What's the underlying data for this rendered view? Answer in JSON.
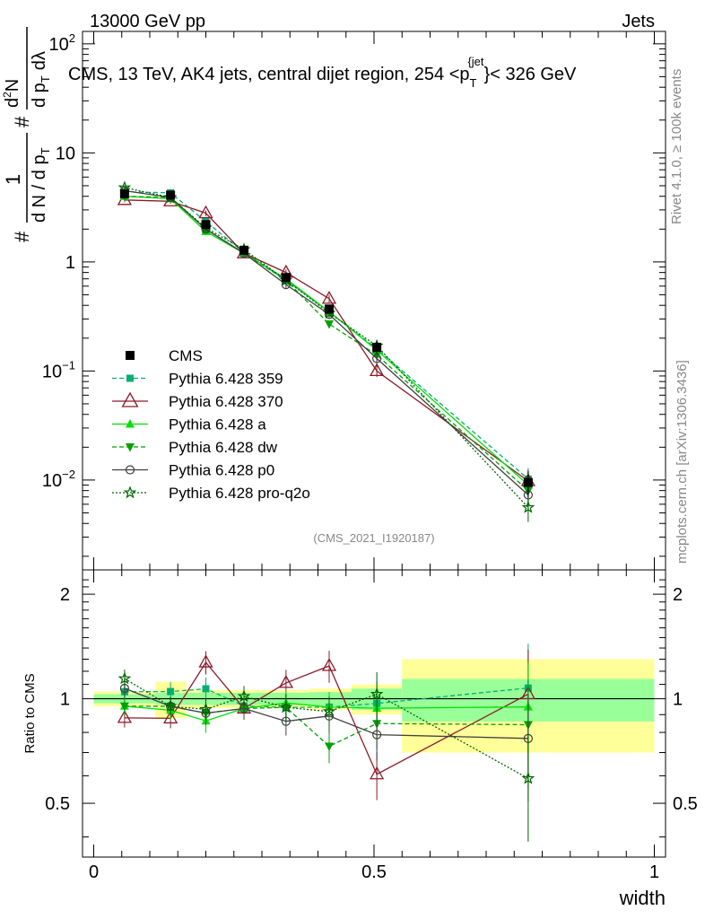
{
  "header": {
    "left": "13000 GeV pp",
    "right": "Jets"
  },
  "side": {
    "rivet": "Rivet 4.1.0, ≥ 100k events",
    "mcplots": "mcplots.cern.ch [arXiv:1306.3436]"
  },
  "ylabel_parts": {
    "hash1": "#",
    "frac_num": "1",
    "frac_den_a": "d N / d p",
    "frac_den_sub": "T",
    "hash2": "#",
    "d2n": "d",
    "d2n_sup": "2",
    "d2n_n": "N",
    "dp": "d p",
    "dp_sub": "T",
    "dlambda": "dλ"
  },
  "chart_data": {
    "type": "line",
    "title": "CMS, 13 TeV, AK4 jets, central dijet region, 254 <p",
    "title_sub": "T",
    "title_sup": "{jet",
    "title_end": "}< 326 GeV",
    "reference": "(CMS_2021_I1920187)",
    "xlabel": "width",
    "xlim": [
      -0.02,
      1.02
    ],
    "ylim": [
      0.0015,
      130
    ],
    "yscale": "log",
    "x_ticks": [
      "0",
      "0.5",
      "1"
    ],
    "y_ticks": [
      {
        "base": "10",
        "exp": "2",
        "v": 100
      },
      {
        "base": "10",
        "exp": "",
        "v": 10
      },
      {
        "base": "1",
        "exp": "",
        "v": 1
      },
      {
        "base": "10",
        "exp": "−1",
        "v": 0.1
      },
      {
        "base": "10",
        "exp": "−2",
        "v": 0.01
      }
    ],
    "x": [
      0.055,
      0.137,
      0.2,
      0.268,
      0.343,
      0.42,
      0.505,
      0.775
    ],
    "bin_edges": [
      0.0,
      0.11,
      0.165,
      0.235,
      0.3,
      0.385,
      0.46,
      0.55,
      1.0
    ],
    "data": {
      "name": "CMS",
      "values": [
        4.2,
        4.1,
        2.2,
        1.28,
        0.72,
        0.37,
        0.165,
        0.0095
      ],
      "errors": [
        0.2,
        0.2,
        0.13,
        0.07,
        0.05,
        0.03,
        0.02,
        0.0025
      ]
    },
    "series": [
      {
        "name": "Pythia 6.428 359",
        "color": "#00b070",
        "dash": "5,3",
        "marker": "square",
        "values": [
          4.4,
          4.3,
          2.35,
          1.22,
          0.68,
          0.35,
          0.16,
          0.0102
        ]
      },
      {
        "name": "Pythia 6.428 370",
        "color": "#8b1a2a",
        "dash": "",
        "marker": "triangle-open",
        "values": [
          3.7,
          3.6,
          2.8,
          1.2,
          0.8,
          0.46,
          0.1,
          0.0098
        ]
      },
      {
        "name": "Pythia 6.428 a",
        "color": "#00e000",
        "dash": "",
        "marker": "triangle",
        "values": [
          4.0,
          3.8,
          1.9,
          1.2,
          0.7,
          0.35,
          0.155,
          0.009
        ]
      },
      {
        "name": "Pythia 6.428 dw",
        "color": "#00a000",
        "dash": "5,3",
        "marker": "triangle-down",
        "values": [
          4.0,
          3.9,
          2.0,
          1.2,
          0.68,
          0.27,
          0.14,
          0.008
        ]
      },
      {
        "name": "Pythia 6.428 p0",
        "color": "#404040",
        "dash": "",
        "marker": "circle-open",
        "values": [
          4.5,
          3.9,
          2.0,
          1.2,
          0.62,
          0.33,
          0.13,
          0.0073
        ]
      },
      {
        "name": "Pythia 6.428 pro-q2o",
        "color": "#006400",
        "dash": "2,2",
        "marker": "star",
        "values": [
          4.8,
          3.9,
          2.05,
          1.3,
          0.68,
          0.34,
          0.17,
          0.0056
        ]
      }
    ],
    "ratio": {
      "ylabel": "Ratio to CMS",
      "ylim": [
        0.35,
        2.35
      ],
      "y_ticks": [
        "2",
        "1",
        "0.5"
      ],
      "y_tick_values": [
        2,
        1,
        0.5
      ],
      "band_inner": [
        0.03,
        0.04,
        0.04,
        0.04,
        0.04,
        0.045,
        0.07,
        0.14
      ],
      "band_outer": [
        0.05,
        0.12,
        0.06,
        0.06,
        0.06,
        0.07,
        0.1,
        0.3
      ]
    }
  }
}
